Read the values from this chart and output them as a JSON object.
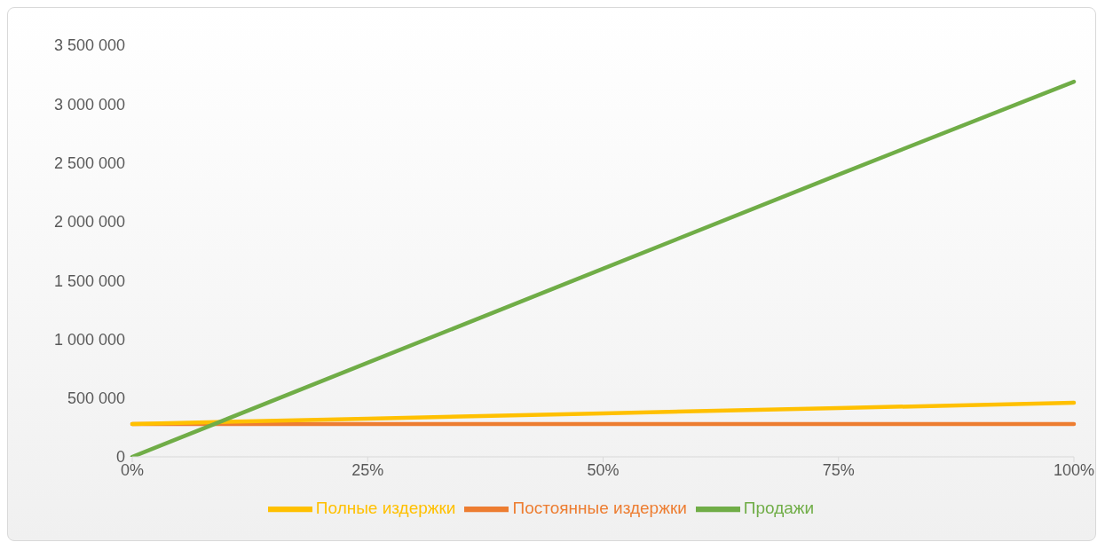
{
  "chart_data": {
    "type": "line",
    "categories": [
      "0%",
      "25%",
      "50%",
      "75%",
      "100%"
    ],
    "series": [
      {
        "name": "Постоянные издержки",
        "color": "#ed7d31",
        "values": [
          280000,
          280000,
          280000,
          280000,
          280000
        ]
      },
      {
        "name": "Полные издержки",
        "color": "#ffc000",
        "values": [
          280000,
          325000,
          370000,
          415000,
          460000
        ]
      },
      {
        "name": "Продажи",
        "color": "#70ad47",
        "values": [
          0,
          800000,
          1600000,
          2400000,
          3190000
        ]
      }
    ],
    "ylim": [
      0,
      3500000
    ],
    "yticks": [
      0,
      {
        "value": 500000,
        "label": "500 000"
      },
      {
        "value": 1000000,
        "label": "1 000 000"
      },
      {
        "value": 1500000,
        "label": "1 500 000"
      },
      {
        "value": 2000000,
        "label": "2 000 000"
      },
      {
        "value": 2500000,
        "label": "2 500 000"
      },
      {
        "value": 3000000,
        "label": "3 000 000"
      },
      {
        "value": 3500000,
        "label": "3 500 000"
      }
    ],
    "grid": false,
    "legend": "bottom",
    "marker": "none",
    "line_style": "solid"
  }
}
